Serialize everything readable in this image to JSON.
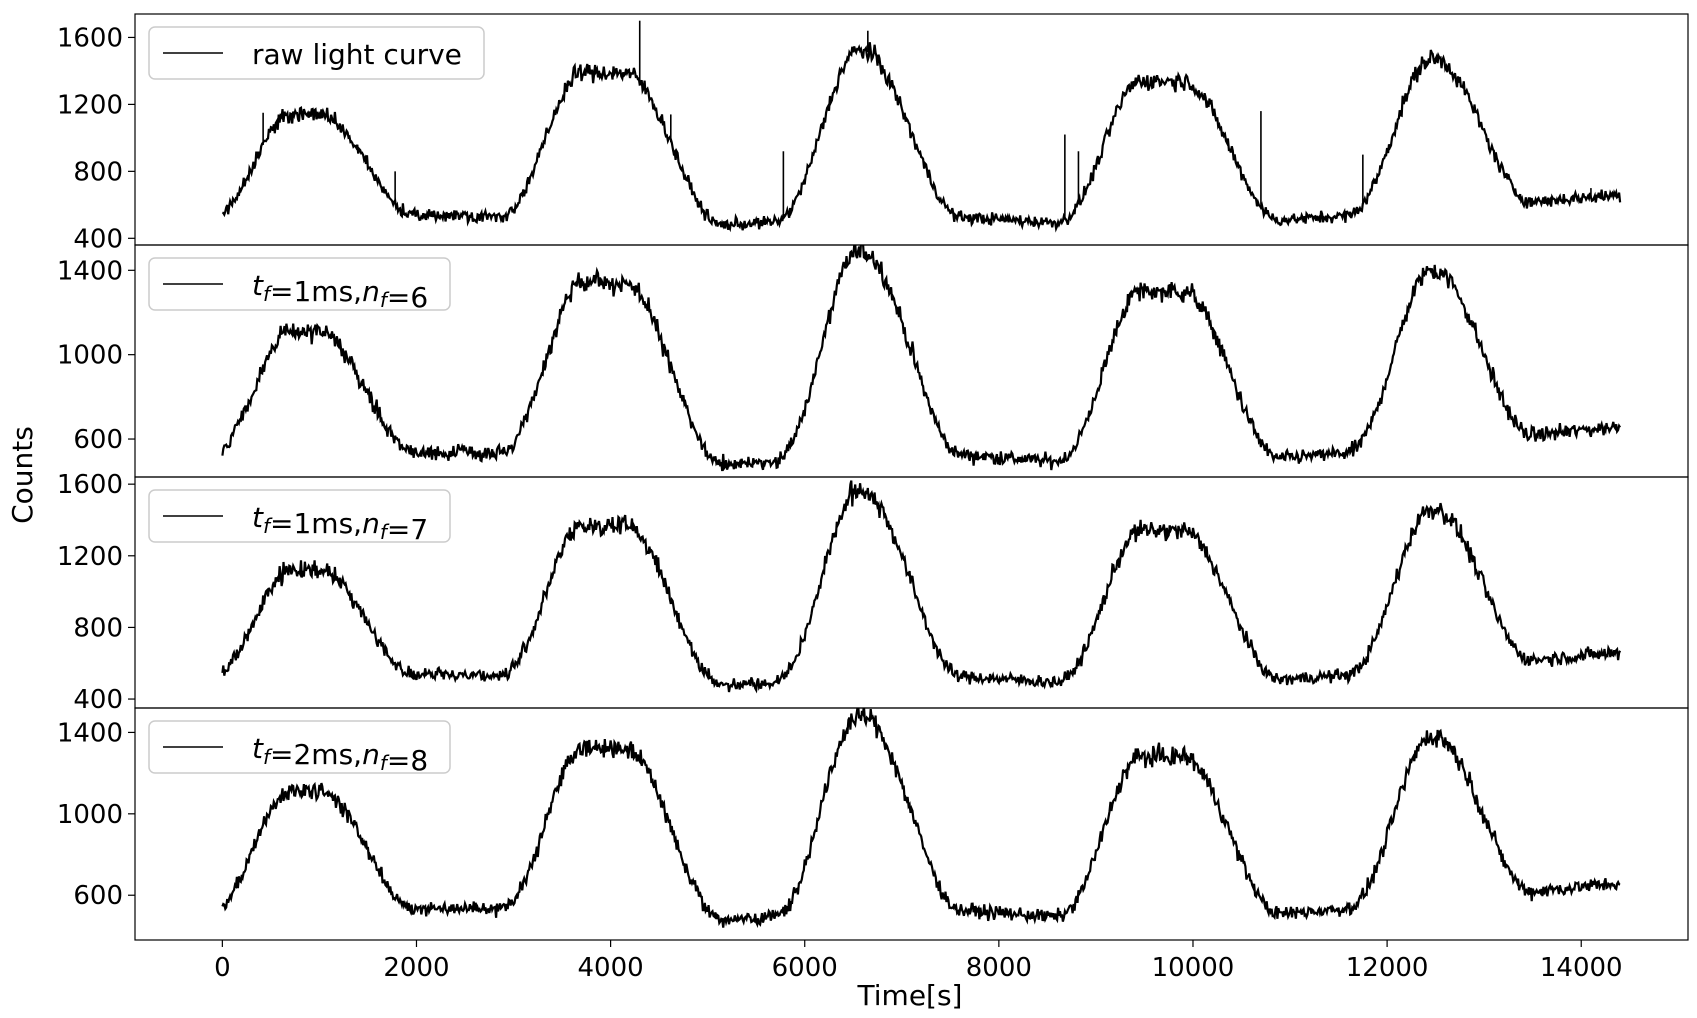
{
  "chart_data": {
    "type": "line",
    "layout": "4 vertically stacked panels sharing the x-axis",
    "xlabel": "Time[s]",
    "ylabel": "Counts",
    "xlim": [
      -900,
      15100
    ],
    "xticks": [
      0,
      2000,
      4000,
      6000,
      8000,
      10000,
      12000,
      14000
    ],
    "x_range": [
      0,
      14400
    ],
    "line_color": "#000000",
    "legend_position": "upper-left",
    "profile": {
      "peak_centers": [
        850,
        3950,
        6550,
        9750,
        12550
      ],
      "peak_plateaus": [
        [
          700,
          1000
        ],
        [
          3700,
          4150
        ],
        [
          6550,
          6600
        ],
        [
          9450,
          9900
        ],
        [
          12450,
          12500
        ]
      ],
      "baseline_levels": [
        500,
        540,
        470,
        540,
        460,
        550,
        660
      ]
    },
    "panels": [
      {
        "legend": "raw light curve",
        "ylim": [
          360,
          1740
        ],
        "yticks": [
          400,
          800,
          1200,
          1600
        ],
        "series": {
          "baseline": 520,
          "peaks": [
            1140,
            1390,
            1520,
            1340,
            1470
          ],
          "noise": 30
        },
        "spikes": [
          [
            420,
            1150
          ],
          [
            1780,
            800
          ],
          [
            4300,
            1700
          ],
          [
            4620,
            1140
          ],
          [
            5780,
            920
          ],
          [
            6650,
            1640
          ],
          [
            8680,
            1020
          ],
          [
            8820,
            920
          ],
          [
            10700,
            1160
          ],
          [
            11750,
            900
          ],
          [
            14100,
            700
          ]
        ]
      },
      {
        "legend": "$t_f$=1ms,$n_f$=6",
        "ylim": [
          420,
          1520
        ],
        "yticks": [
          600,
          1000,
          1400
        ],
        "series": {
          "baseline": 520,
          "peaks": [
            1110,
            1340,
            1490,
            1300,
            1400
          ],
          "noise": 28
        },
        "spikes": []
      },
      {
        "legend": "$t_f$=1ms,$n_f$=7",
        "ylim": [
          350,
          1640
        ],
        "yticks": [
          400,
          800,
          1200,
          1600
        ],
        "series": {
          "baseline": 520,
          "peaks": [
            1120,
            1370,
            1560,
            1340,
            1460
          ],
          "noise": 30
        },
        "spikes": []
      },
      {
        "legend": "$t_f$=2ms,$n_f$=8",
        "ylim": [
          380,
          1520
        ],
        "yticks": [
          600,
          1000,
          1400
        ],
        "series": {
          "baseline": 520,
          "peaks": [
            1110,
            1320,
            1480,
            1280,
            1380
          ],
          "noise": 28
        },
        "spikes": []
      }
    ]
  }
}
